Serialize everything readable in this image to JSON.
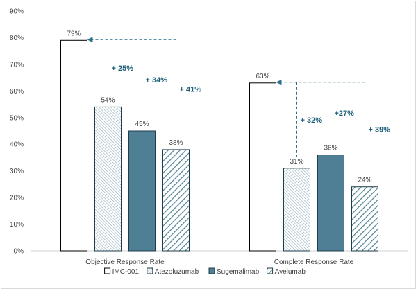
{
  "chart_data": {
    "type": "bar",
    "categories": [
      "Objective Response Rate",
      "Complete Response Rate"
    ],
    "series": [
      {
        "name": "IMC-001",
        "values": [
          79,
          63
        ],
        "fill": "white",
        "color": "#000000"
      },
      {
        "name": "Atezoluzumab",
        "values": [
          54,
          31
        ],
        "fill": "dense-hatch",
        "color": "#8fa9b8"
      },
      {
        "name": "Sugemalimab",
        "values": [
          45,
          36
        ],
        "fill": "solid",
        "color": "#4f7f95"
      },
      {
        "name": "Avelumab",
        "values": [
          38,
          24
        ],
        "fill": "wide-hatch",
        "color": "#4f7f95"
      }
    ],
    "data_labels": [
      [
        "79%",
        "54%",
        "45%",
        "38%"
      ],
      [
        "63%",
        "31%",
        "36%",
        "24%"
      ]
    ],
    "ylim": [
      0,
      90
    ],
    "yticks": [
      0,
      10,
      20,
      30,
      40,
      50,
      60,
      70,
      80,
      90
    ],
    "ytick_labels": [
      "0%",
      "10%",
      "20%",
      "30%",
      "40%",
      "50%",
      "60%",
      "70%",
      "80%",
      "90%"
    ],
    "grid": false,
    "legend_position": "bottom",
    "annotations": [
      {
        "category": 0,
        "series": 1,
        "text": "+ 25%"
      },
      {
        "category": 0,
        "series": 2,
        "text": "+ 34%"
      },
      {
        "category": 0,
        "series": 3,
        "text": "+ 41%"
      },
      {
        "category": 1,
        "series": 1,
        "text": "+ 32%"
      },
      {
        "category": 1,
        "series": 2,
        "text": "+27%"
      },
      {
        "category": 1,
        "series": 3,
        "text": "+ 39%"
      }
    ],
    "annotation_color": "#2e6f8e"
  }
}
